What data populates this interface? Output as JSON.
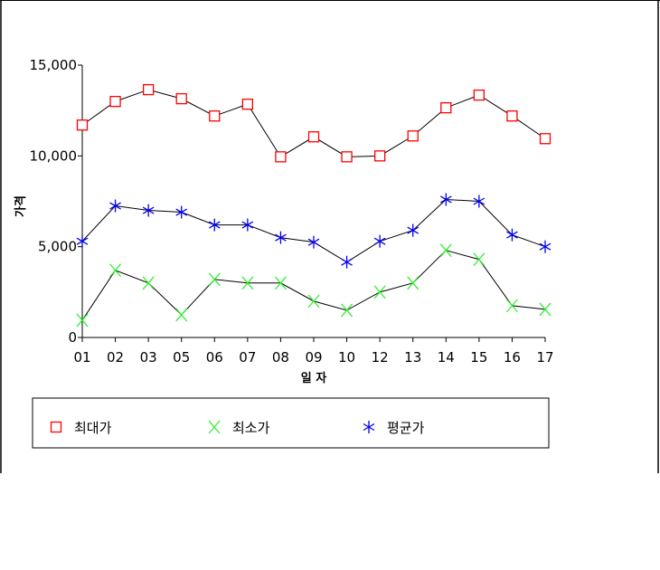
{
  "chart_data": {
    "type": "line",
    "xlabel": "일 자",
    "ylabel": "가격",
    "ylim": [
      0,
      15000
    ],
    "yticks": [
      "0",
      "5,000",
      "10,000",
      "15,000"
    ],
    "ytick_values": [
      0,
      5000,
      10000,
      15000
    ],
    "categories": [
      "01",
      "02",
      "03",
      "05",
      "06",
      "07",
      "08",
      "09",
      "10",
      "12",
      "13",
      "14",
      "15",
      "16",
      "17"
    ],
    "grid": false,
    "legend_position": "bottom",
    "series": [
      {
        "name": "최대가",
        "marker": "square",
        "color": "#ff0000",
        "values": [
          11700,
          13000,
          13650,
          13150,
          12200,
          12850,
          9950,
          11050,
          9950,
          10000,
          11100,
          12650,
          13350,
          12200,
          10950
        ]
      },
      {
        "name": "최소가",
        "marker": "x",
        "color": "#33ee33",
        "values": [
          950,
          3700,
          3000,
          1250,
          3200,
          3000,
          3000,
          2000,
          1500,
          2500,
          3000,
          4800,
          4300,
          1750,
          1550
        ]
      },
      {
        "name": "평균가",
        "marker": "asterisk",
        "color": "#0000ee",
        "values": [
          5300,
          7250,
          7000,
          6900,
          6200,
          6200,
          5500,
          5250,
          4150,
          5300,
          5900,
          7600,
          7500,
          5650,
          5000
        ]
      }
    ]
  }
}
